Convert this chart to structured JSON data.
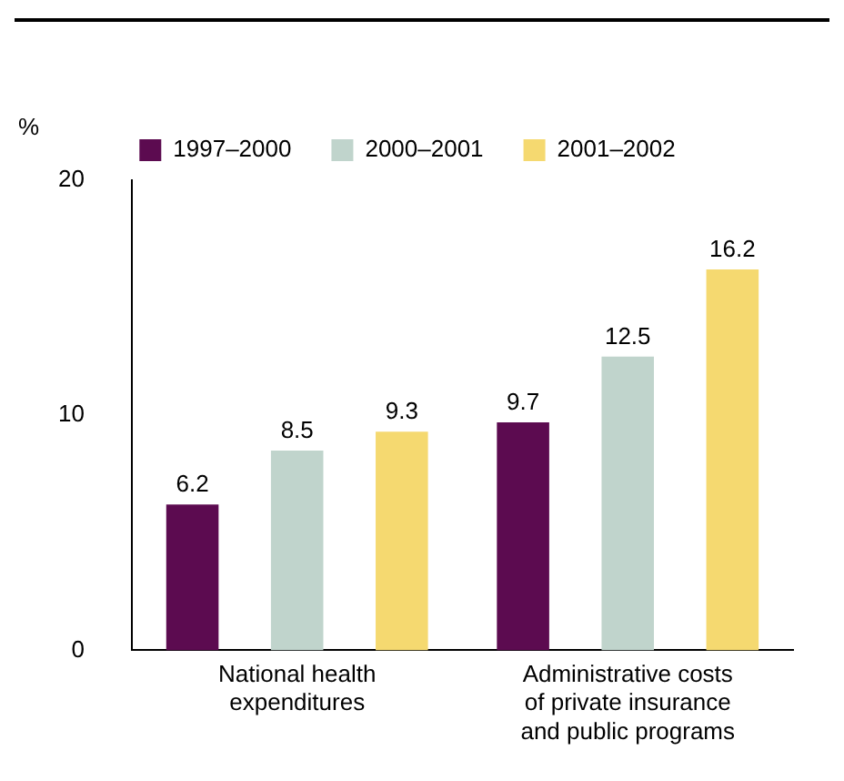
{
  "chart_data": {
    "type": "bar",
    "ylabel": "%",
    "categories": [
      "National health expenditures",
      "Administrative costs of private insurance and public programs"
    ],
    "series": [
      {
        "name": "1997–2000",
        "color": "#5c0b50",
        "values": [
          6.2,
          9.7
        ]
      },
      {
        "name": "2000–2001",
        "color": "#c0d4cc",
        "values": [
          8.5,
          12.5
        ]
      },
      {
        "name": "2001–2002",
        "color": "#f5d970",
        "values": [
          9.3,
          16.2
        ]
      }
    ],
    "ylim": [
      0,
      20
    ],
    "yticks": [
      0,
      10,
      20
    ],
    "grid": false,
    "legend": "top",
    "data_labels": true
  }
}
